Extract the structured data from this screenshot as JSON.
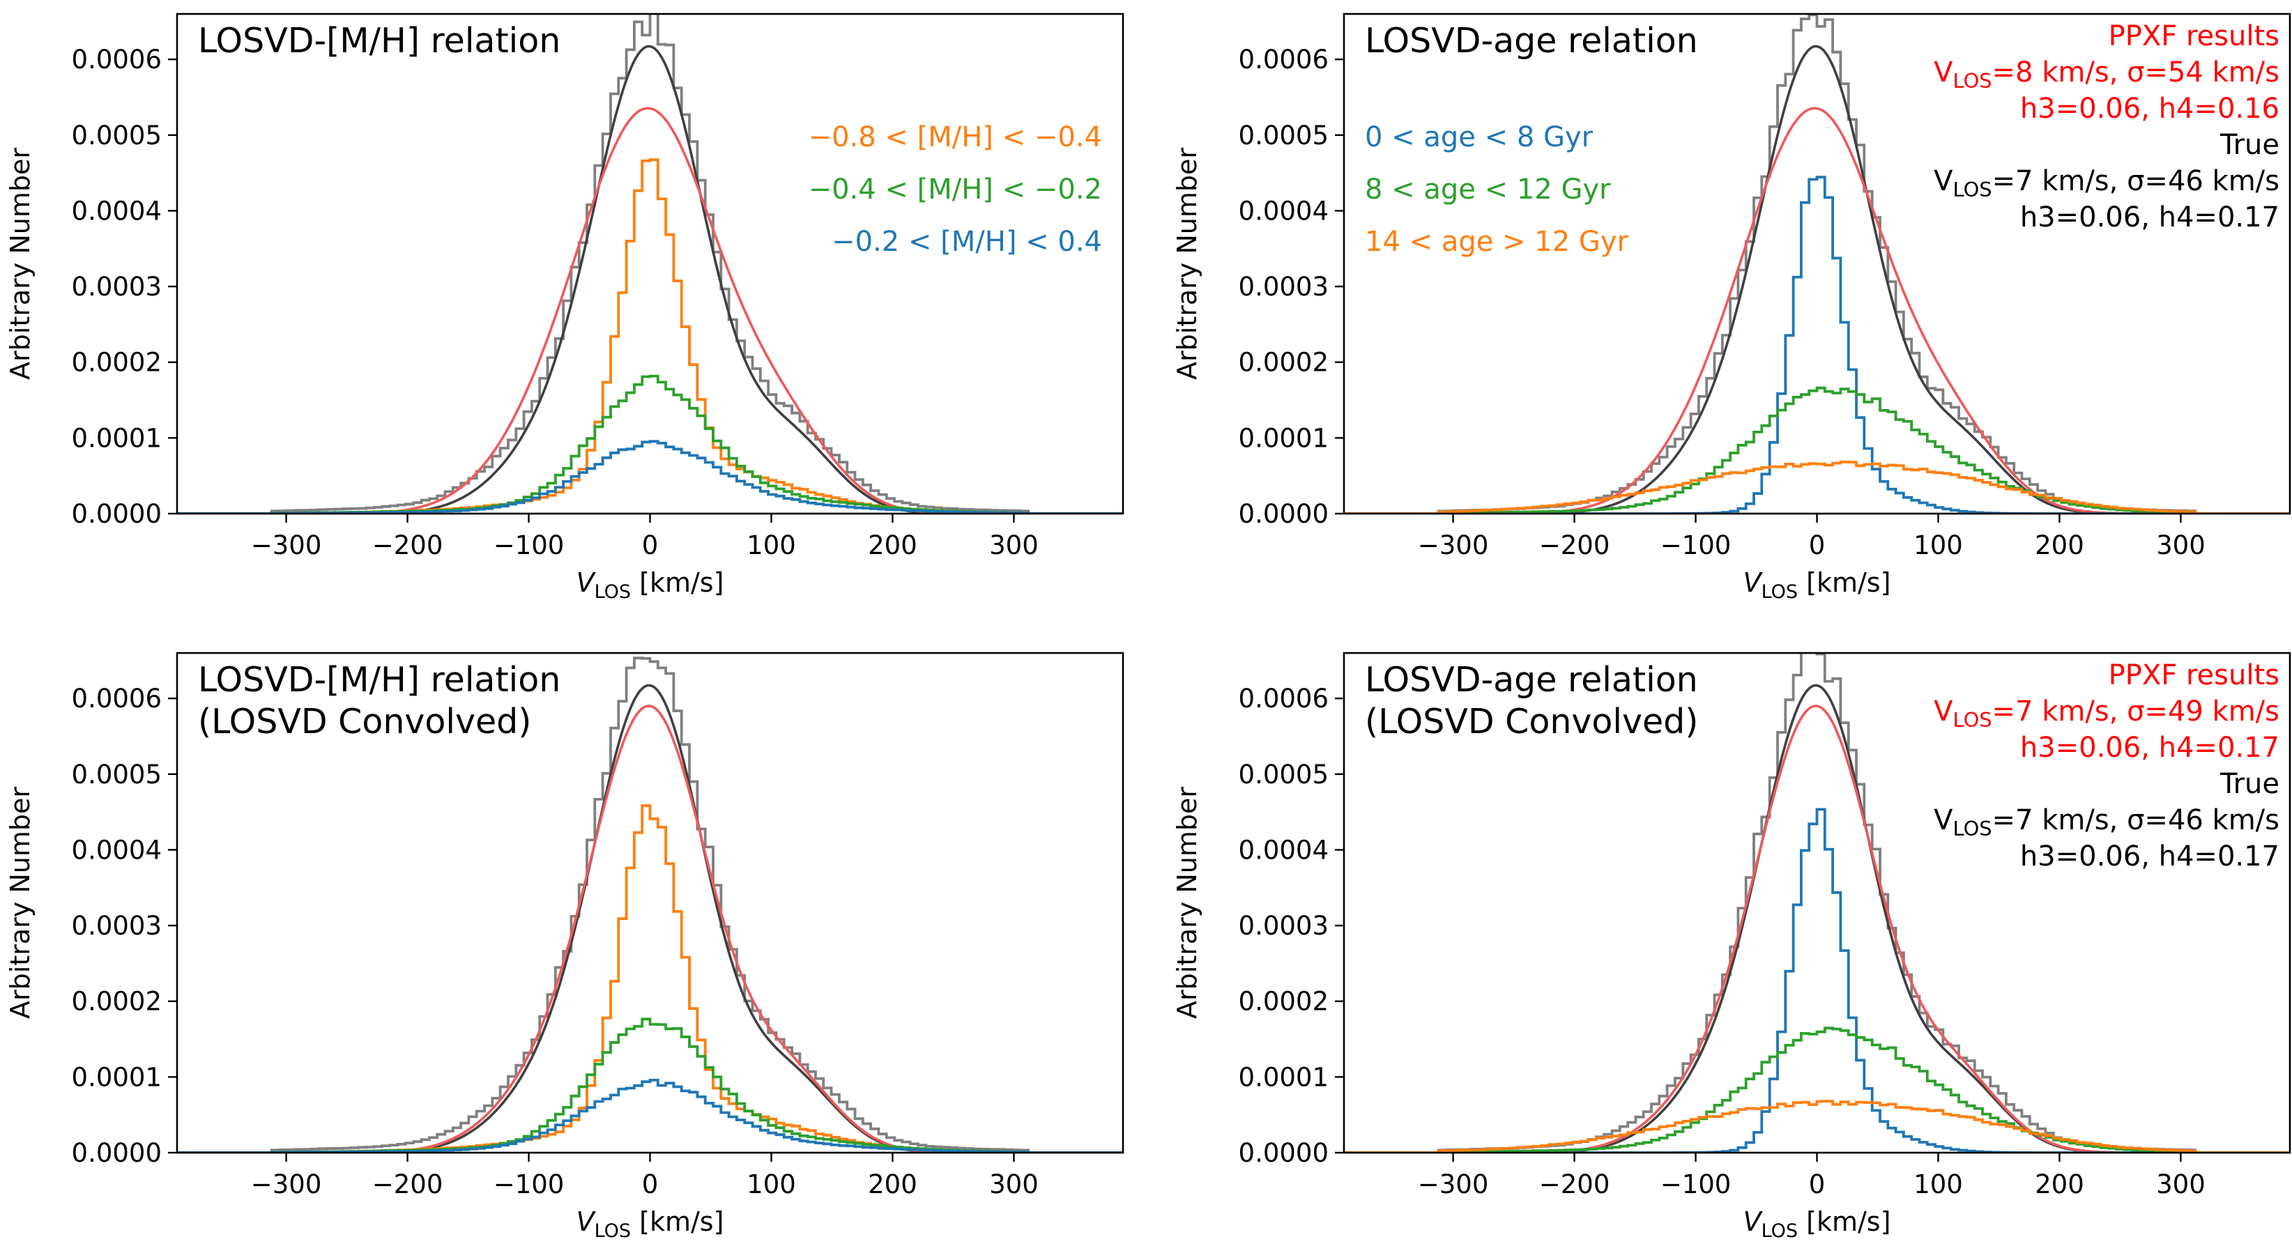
{
  "figure": {
    "y_axis_label": "Arbitrary Number",
    "x_axis_label_main": "V",
    "x_axis_label_sub": "LOS",
    "x_axis_label_unit": " [km/s]",
    "x_ticks": [
      -300,
      -200,
      -100,
      0,
      100,
      200,
      300
    ],
    "x_tick_labels": [
      "−300",
      "−200",
      "−100",
      "0",
      "100",
      "200",
      "300"
    ],
    "y_ticks": [
      0,
      0.0001,
      0.0002,
      0.0003,
      0.0004,
      0.0005,
      0.0006
    ],
    "y_tick_labels": [
      "0.0000",
      "0.0001",
      "0.0002",
      "0.0003",
      "0.0004",
      "0.0005",
      "0.0006"
    ],
    "xlim": [
      -390,
      390
    ],
    "ylim": [
      0,
      0.00066
    ]
  },
  "colors": {
    "total": "#808080",
    "true_fit": "#404040",
    "ppxf_fit": "#ef5a5a",
    "blue": "#1f77b4",
    "orange": "#ff7f0e",
    "green": "#2ca02c",
    "red_text": "#ff0000",
    "black_text": "#000000"
  },
  "chart_data": [
    {
      "type": "line",
      "title_lines": [
        "LOSVD-[M/H] relation"
      ],
      "xlabel": "VLOS [km/s]",
      "ylabel": "Arbitrary Number",
      "xlim": [
        -390,
        390
      ],
      "ylim": [
        0,
        0.00066
      ],
      "legend_position": "right",
      "legend": [
        {
          "text": "−0.8 < [M/H] < −0.4",
          "color": "orange"
        },
        {
          "text": "−0.4 < [M/H] < −0.2",
          "color": "green"
        },
        {
          "text": "−0.2 < [M/H] < 0.4",
          "color": "blue"
        }
      ],
      "annotations": [],
      "series": [
        {
          "name": "total",
          "kind": "step",
          "color": "total",
          "model": {
            "a": 0.000625,
            "s": 45,
            "b": 9.8e-05,
            "bm": 115,
            "bs": 40,
            "c": 6.8e-05,
            "cm": -90,
            "cs": 45,
            "w": 1.8e-05,
            "ws": 170
          }
        },
        {
          "name": "true fit",
          "kind": "curve",
          "color": "true_fit",
          "model": {
            "a": 0.00061,
            "s": 46,
            "b": 9.5e-05,
            "bm": 115,
            "bs": 38,
            "c": 6.2e-05,
            "cm": -90,
            "cs": 42
          }
        },
        {
          "name": "ppxf fit",
          "kind": "curve",
          "color": "ppxf_fit",
          "model": {
            "a": 0.00052,
            "s": 56,
            "b": 9.5e-05,
            "bm": 110,
            "bs": 42,
            "c": 6.5e-05,
            "cm": -88,
            "cs": 48
          }
        },
        {
          "name": "-0.8<[M/H]<-0.4",
          "kind": "step",
          "color": "orange",
          "model": {
            "a": 0.0004,
            "s": 24,
            "b": 4.8e-05,
            "bm": 40,
            "bs": 72,
            "w": 1.4e-05,
            "ws": 120
          }
        },
        {
          "name": "-0.4<[M/H]<-0.2",
          "kind": "step",
          "color": "green",
          "model": {
            "a": 0.000152,
            "s": 45,
            "b": 2e-05,
            "bm": 60,
            "bs": 85,
            "w": 8e-06,
            "ws": 140
          }
        },
        {
          "name": "-0.2<[M/H]<0.4",
          "kind": "step",
          "color": "blue",
          "model": {
            "a": 7.9e-05,
            "s": 52,
            "b": 1.2e-05,
            "bm": 60,
            "bs": 90,
            "w": 4e-06,
            "ws": 150
          }
        }
      ]
    },
    {
      "type": "line",
      "title_lines": [
        "LOSVD-age relation"
      ],
      "xlabel": "VLOS [km/s]",
      "ylabel": "Arbitrary Number",
      "xlim": [
        -390,
        390
      ],
      "ylim": [
        0,
        0.00066
      ],
      "legend_position": "left",
      "legend": [
        {
          "text": "0 < age < 8 Gyr",
          "color": "blue"
        },
        {
          "text": "8 < age < 12 Gyr",
          "color": "green"
        },
        {
          "text": "14 < age > 12 Gyr",
          "color": "orange"
        }
      ],
      "annotations": [
        {
          "color": "red_text",
          "lines": [
            "PPXF results",
            "V|LOS|=8 km/s, σ=54 km/s",
            "h3=0.06, h4=0.16"
          ]
        },
        {
          "color": "black_text",
          "lines": [
            "True",
            "V|LOS|=7 km/s, σ=46 km/s",
            "h3=0.06, h4=0.17"
          ]
        }
      ],
      "series": [
        {
          "name": "total",
          "kind": "step",
          "color": "total",
          "model": {
            "a": 0.000625,
            "s": 45,
            "b": 9.8e-05,
            "bm": 115,
            "bs": 40,
            "c": 6.8e-05,
            "cm": -90,
            "cs": 45,
            "w": 1.8e-05,
            "ws": 170
          }
        },
        {
          "name": "true fit",
          "kind": "curve",
          "color": "true_fit",
          "model": {
            "a": 0.00061,
            "s": 46,
            "b": 9.5e-05,
            "bm": 115,
            "bs": 38,
            "c": 6.2e-05,
            "cm": -90,
            "cs": 42
          }
        },
        {
          "name": "ppxf fit",
          "kind": "curve",
          "color": "ppxf_fit",
          "model": {
            "a": 0.00052,
            "s": 56,
            "b": 9.5e-05,
            "bm": 110,
            "bs": 42,
            "c": 6.5e-05,
            "cm": -88,
            "cs": 48
          }
        },
        {
          "name": "0<age<8 Gyr",
          "kind": "step",
          "color": "blue",
          "model": {
            "a": 0.00042,
            "s": 20,
            "b": 4e-05,
            "bm": 30,
            "bs": 40
          }
        },
        {
          "name": "8<age<12 Gyr",
          "kind": "step",
          "color": "green",
          "model": {
            "a": 0.000125,
            "s": 60,
            "b": 5.5e-05,
            "bm": 80,
            "bs": 70,
            "w": 8e-06,
            "ws": 150
          }
        },
        {
          "name": "14<age>12 Gyr",
          "kind": "step",
          "color": "orange",
          "model": {
            "a": 6e-05,
            "s": 110,
            "b": 1.2e-05,
            "bm": 120,
            "bs": 60,
            "w": 4e-06,
            "ws": 200
          }
        }
      ]
    },
    {
      "type": "line",
      "title_lines": [
        "LOSVD-[M/H] relation",
        "(LOSVD Convolved)"
      ],
      "xlabel": "VLOS [km/s]",
      "ylabel": "Arbitrary Number",
      "xlim": [
        -390,
        390
      ],
      "ylim": [
        0,
        0.00066
      ],
      "legend_position": "none",
      "legend": [],
      "annotations": [],
      "series": [
        {
          "name": "total",
          "kind": "step",
          "color": "total",
          "model": {
            "a": 0.000625,
            "s": 45,
            "b": 9.8e-05,
            "bm": 115,
            "bs": 40,
            "c": 6.8e-05,
            "cm": -90,
            "cs": 45,
            "w": 1.8e-05,
            "ws": 170
          }
        },
        {
          "name": "true fit",
          "kind": "curve",
          "color": "true_fit",
          "model": {
            "a": 0.00061,
            "s": 46,
            "b": 9.5e-05,
            "bm": 115,
            "bs": 38,
            "c": 6.2e-05,
            "cm": -90,
            "cs": 42
          }
        },
        {
          "name": "ppxf fit",
          "kind": "curve",
          "color": "ppxf_fit",
          "model": {
            "a": 0.00058,
            "s": 48,
            "b": 0.0001,
            "bm": 112,
            "bs": 40,
            "c": 6.5e-05,
            "cm": -90,
            "cs": 44
          }
        },
        {
          "name": "-0.8<[M/H]<-0.4",
          "kind": "step",
          "color": "orange",
          "model": {
            "a": 0.0004,
            "s": 24,
            "b": 4.8e-05,
            "bm": 40,
            "bs": 72,
            "w": 1.4e-05,
            "ws": 120
          }
        },
        {
          "name": "-0.4<[M/H]<-0.2",
          "kind": "step",
          "color": "green",
          "model": {
            "a": 0.000152,
            "s": 45,
            "b": 2e-05,
            "bm": 60,
            "bs": 85,
            "w": 8e-06,
            "ws": 140
          }
        },
        {
          "name": "-0.2<[M/H]<0.4",
          "kind": "step",
          "color": "blue",
          "model": {
            "a": 7.9e-05,
            "s": 52,
            "b": 1.2e-05,
            "bm": 60,
            "bs": 90,
            "w": 4e-06,
            "ws": 150
          }
        }
      ]
    },
    {
      "type": "line",
      "title_lines": [
        "LOSVD-age relation",
        "(LOSVD Convolved)"
      ],
      "xlabel": "VLOS [km/s]",
      "ylabel": "Arbitrary Number",
      "xlim": [
        -390,
        390
      ],
      "ylim": [
        0,
        0.00066
      ],
      "legend_position": "none",
      "legend": [],
      "annotations": [
        {
          "color": "red_text",
          "lines": [
            "PPXF results",
            "V|LOS|=7 km/s, σ=49 km/s",
            "h3=0.06, h4=0.17"
          ]
        },
        {
          "color": "black_text",
          "lines": [
            "True",
            "V|LOS|=7 km/s, σ=46 km/s",
            "h3=0.06, h4=0.17"
          ]
        }
      ],
      "series": [
        {
          "name": "total",
          "kind": "step",
          "color": "total",
          "model": {
            "a": 0.000625,
            "s": 45,
            "b": 9.8e-05,
            "bm": 115,
            "bs": 40,
            "c": 6.8e-05,
            "cm": -90,
            "cs": 45,
            "w": 1.8e-05,
            "ws": 170
          }
        },
        {
          "name": "true fit",
          "kind": "curve",
          "color": "true_fit",
          "model": {
            "a": 0.00061,
            "s": 46,
            "b": 9.5e-05,
            "bm": 115,
            "bs": 38,
            "c": 6.2e-05,
            "cm": -90,
            "cs": 42
          }
        },
        {
          "name": "ppxf fit",
          "kind": "curve",
          "color": "ppxf_fit",
          "model": {
            "a": 0.00058,
            "s": 48,
            "b": 0.0001,
            "bm": 112,
            "bs": 40,
            "c": 6.5e-05,
            "cm": -90,
            "cs": 44
          }
        },
        {
          "name": "0<age<8 Gyr",
          "kind": "step",
          "color": "blue",
          "model": {
            "a": 0.00042,
            "s": 20,
            "b": 4e-05,
            "bm": 30,
            "bs": 40
          }
        },
        {
          "name": "8<age<12 Gyr",
          "kind": "step",
          "color": "green",
          "model": {
            "a": 0.000125,
            "s": 60,
            "b": 5.5e-05,
            "bm": 80,
            "bs": 70,
            "w": 8e-06,
            "ws": 150
          }
        },
        {
          "name": "14<age>12 Gyr",
          "kind": "step",
          "color": "orange",
          "model": {
            "a": 6e-05,
            "s": 110,
            "b": 1.2e-05,
            "bm": 120,
            "bs": 60,
            "w": 4e-06,
            "ws": 200
          }
        }
      ]
    }
  ]
}
